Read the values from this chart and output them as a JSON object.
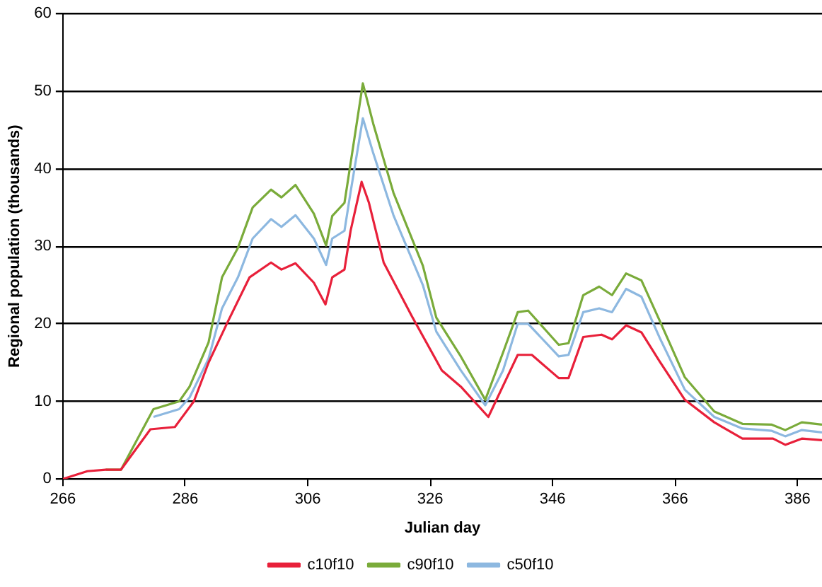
{
  "chart_data": {
    "type": "line",
    "xlabel": "Julian day",
    "ylabel": "Regional population (thousands)",
    "xlim": [
      266,
      390
    ],
    "xticks": [
      266,
      286,
      306,
      326,
      346,
      366,
      386
    ],
    "ylim": [
      0,
      60
    ],
    "yticks": [
      0,
      10,
      20,
      30,
      40,
      50,
      60
    ],
    "grid": "y",
    "legend": "bottom",
    "marker": "none",
    "series": [
      {
        "name": "c10f10",
        "color": "#e8203a",
        "x": [
          266,
          268,
          270,
          273,
          275.5,
          280.3,
          284.3,
          287.4,
          289.8,
          292.9,
          296.5,
          300,
          301.7,
          304,
          307,
          308.9,
          310,
          312,
          313,
          314.8,
          316,
          318.4,
          323,
          327.9,
          331,
          335.5,
          340.3,
          342.6,
          347,
          348.6,
          351,
          354,
          355.7,
          358,
          360.5,
          363.6,
          367.6,
          372.4,
          377,
          382,
          384,
          386.7,
          390
        ],
        "values": [
          0,
          0.5,
          1,
          1.2,
          1.2,
          6.4,
          6.7,
          10,
          15,
          20.2,
          26,
          27.9,
          27,
          27.8,
          25.3,
          22.5,
          26,
          27,
          32,
          38.3,
          35.6,
          27.9,
          21,
          14,
          11.9,
          8,
          16,
          16,
          13,
          13,
          18.3,
          18.6,
          18,
          19.8,
          18.9,
          15,
          10.2,
          7.3,
          5.2,
          5.2,
          4.4,
          5.2,
          5
        ]
      },
      {
        "name": "c90f10",
        "color": "#7aab3a",
        "x": [
          273,
          275.5,
          280.8,
          285,
          286.7,
          289.8,
          292,
          294.6,
          297,
          300,
          301.7,
          304,
          307,
          309,
          310,
          312,
          313,
          315,
          316.7,
          320,
          324.8,
          327,
          331,
          335,
          337.9,
          340.3,
          342,
          347,
          348.6,
          351,
          353.6,
          355.7,
          358,
          360.5,
          363.6,
          367.6,
          372.4,
          377,
          381.8,
          384,
          386.7,
          390
        ],
        "values": [
          1.2,
          1.2,
          9,
          10,
          11.9,
          17.6,
          26,
          29.8,
          35,
          37.3,
          36.3,
          37.9,
          34.2,
          30.1,
          33.9,
          35.6,
          40.7,
          51,
          45.8,
          36.9,
          27.5,
          20.8,
          15.8,
          10.2,
          16.3,
          21.5,
          21.7,
          17.3,
          17.5,
          23.7,
          24.8,
          23.7,
          26.5,
          25.6,
          20.2,
          13.1,
          8.7,
          7.1,
          7,
          6.3,
          7.3,
          7
        ]
      },
      {
        "name": "c50f10",
        "color": "#8db8e0",
        "x": [
          280.8,
          285,
          286.7,
          289.8,
          292,
          294.6,
          297,
          300,
          301.7,
          304,
          307,
          309,
          310,
          312,
          313,
          315,
          316.7,
          320,
          324.8,
          327,
          331,
          335,
          337.9,
          340.3,
          342,
          347,
          348.6,
          351,
          353.6,
          355.7,
          358,
          360.5,
          363.6,
          367.6,
          372.4,
          377,
          381.8,
          384,
          386.7,
          390
        ],
        "values": [
          8,
          9,
          10.5,
          15.5,
          22,
          26,
          31,
          33.5,
          32.5,
          34,
          31,
          27.6,
          31,
          32,
          37,
          46.5,
          42,
          34,
          25,
          19,
          14,
          9.5,
          14,
          20,
          20,
          15.8,
          16,
          21.5,
          22,
          21.5,
          24.5,
          23.5,
          18,
          11.5,
          8,
          6.5,
          6.2,
          5.5,
          6.3,
          6
        ]
      }
    ]
  }
}
